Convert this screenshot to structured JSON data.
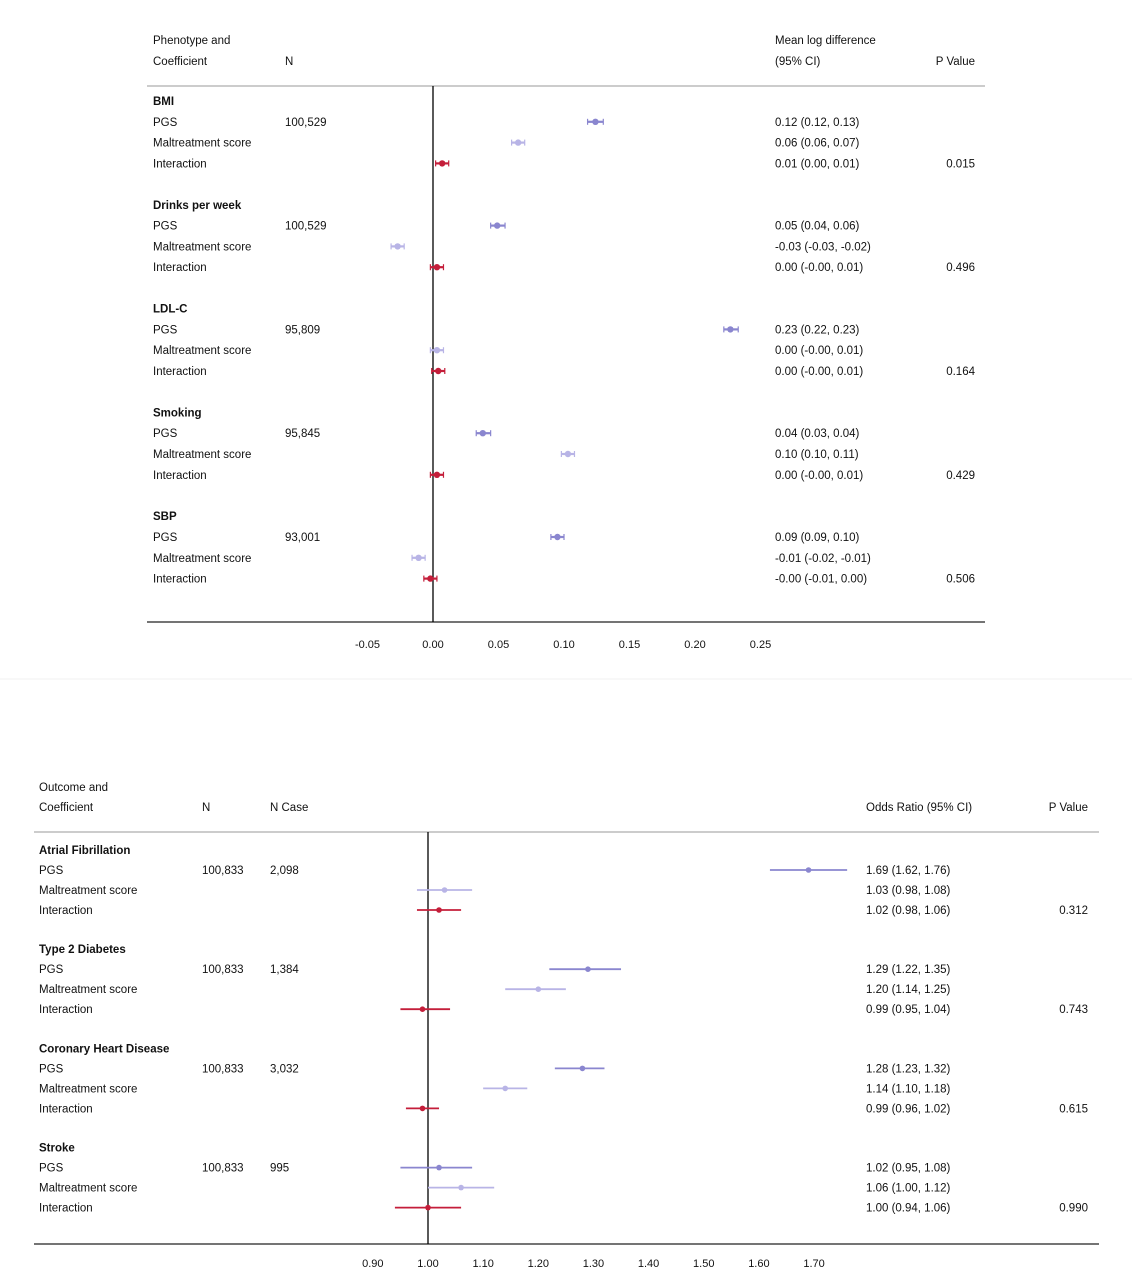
{
  "chart_data": [
    {
      "type": "forest",
      "header": {
        "label_line1": "Phenotype and",
        "label_line2": "Coefficient",
        "n": "N",
        "est_line1": "Mean log difference",
        "est_line2": "(95% CI)",
        "p": "P Value"
      },
      "xlim": [
        -0.1,
        0.25
      ],
      "ref_line": 0,
      "xticks": [
        "-0.05",
        "0.00",
        "0.05",
        "0.10",
        "0.15",
        "0.20",
        "0.25"
      ],
      "xtick_values": [
        -0.05,
        0,
        0.05,
        0.1,
        0.15,
        0.2,
        0.25
      ],
      "colors": {
        "PGS": "#8a86cf",
        "Maltreatment score": "#b8b4e6",
        "Interaction": "#c41e3a"
      },
      "groups": [
        {
          "name": "BMI",
          "rows": [
            {
              "label": "PGS",
              "n": "100,529",
              "est": 0.124,
              "lo": 0.118,
              "hi": 0.13,
              "text": "0.12 (0.12, 0.13)",
              "p": ""
            },
            {
              "label": "Maltreatment score",
              "n": "",
              "est": 0.065,
              "lo": 0.06,
              "hi": 0.07,
              "text": "0.06 (0.06, 0.07)",
              "p": ""
            },
            {
              "label": "Interaction",
              "n": "",
              "est": 0.007,
              "lo": 0.002,
              "hi": 0.012,
              "text": "0.01 (0.00, 0.01)",
              "p": "0.015"
            }
          ]
        },
        {
          "name": "Drinks per week",
          "rows": [
            {
              "label": "PGS",
              "n": "100,529",
              "est": 0.049,
              "lo": 0.044,
              "hi": 0.055,
              "text": "0.05 (0.04, 0.06)",
              "p": ""
            },
            {
              "label": "Maltreatment score",
              "n": "",
              "est": -0.027,
              "lo": -0.032,
              "hi": -0.022,
              "text": "-0.03 (-0.03, -0.02)",
              "p": ""
            },
            {
              "label": "Interaction",
              "n": "",
              "est": 0.003,
              "lo": -0.002,
              "hi": 0.008,
              "text": "0.00 (-0.00, 0.01)",
              "p": "0.496"
            }
          ]
        },
        {
          "name": "LDL-C",
          "rows": [
            {
              "label": "PGS",
              "n": "95,809",
              "est": 0.227,
              "lo": 0.222,
              "hi": 0.233,
              "text": "0.23 (0.22, 0.23)",
              "p": ""
            },
            {
              "label": "Maltreatment score",
              "n": "",
              "est": 0.003,
              "lo": -0.002,
              "hi": 0.008,
              "text": "0.00 (-0.00, 0.01)",
              "p": ""
            },
            {
              "label": "Interaction",
              "n": "",
              "est": 0.004,
              "lo": -0.001,
              "hi": 0.009,
              "text": "0.00 (-0.00, 0.01)",
              "p": "0.164"
            }
          ]
        },
        {
          "name": "Smoking",
          "rows": [
            {
              "label": "PGS",
              "n": "95,845",
              "est": 0.038,
              "lo": 0.033,
              "hi": 0.044,
              "text": "0.04 (0.03, 0.04)",
              "p": ""
            },
            {
              "label": "Maltreatment score",
              "n": "",
              "est": 0.103,
              "lo": 0.098,
              "hi": 0.108,
              "text": "0.10 (0.10, 0.11)",
              "p": ""
            },
            {
              "label": "Interaction",
              "n": "",
              "est": 0.003,
              "lo": -0.002,
              "hi": 0.008,
              "text": "0.00 (-0.00, 0.01)",
              "p": "0.429"
            }
          ]
        },
        {
          "name": "SBP",
          "rows": [
            {
              "label": "PGS",
              "n": "93,001",
              "est": 0.095,
              "lo": 0.09,
              "hi": 0.1,
              "text": "0.09 (0.09, 0.10)",
              "p": ""
            },
            {
              "label": "Maltreatment score",
              "n": "",
              "est": -0.011,
              "lo": -0.016,
              "hi": -0.006,
              "text": "-0.01 (-0.02, -0.01)",
              "p": ""
            },
            {
              "label": "Interaction",
              "n": "",
              "est": -0.002,
              "lo": -0.007,
              "hi": 0.003,
              "text": "-0.00 (-0.01, 0.00)",
              "p": "0.506"
            }
          ]
        }
      ]
    },
    {
      "type": "forest",
      "header": {
        "label_line1": "Outcome and",
        "label_line2": "Coefficient",
        "n": "N",
        "ncase": "N Case",
        "est_line2": "Odds Ratio (95% CI)",
        "p": "P Value"
      },
      "xlim": [
        0.8,
        1.95
      ],
      "ref_line": 1.0,
      "xticks": [
        "0.90",
        "1.00",
        "1.10",
        "1.20",
        "1.30",
        "1.40",
        "1.50",
        "1.60",
        "1.70"
      ],
      "xtick_values": [
        0.9,
        1.0,
        1.1,
        1.2,
        1.3,
        1.4,
        1.5,
        1.6,
        1.7
      ],
      "colors": {
        "PGS": "#8a86cf",
        "Maltreatment score": "#b8b4e6",
        "Interaction": "#c41e3a"
      },
      "groups": [
        {
          "name": "Atrial Fibrillation",
          "rows": [
            {
              "label": "PGS",
              "n": "100,833",
              "ncase": "2,098",
              "est": 1.69,
              "lo": 1.62,
              "hi": 1.76,
              "text": "1.69 (1.62, 1.76)",
              "p": ""
            },
            {
              "label": "Maltreatment score",
              "n": "",
              "ncase": "",
              "est": 1.03,
              "lo": 0.98,
              "hi": 1.08,
              "text": "1.03 (0.98, 1.08)",
              "p": ""
            },
            {
              "label": "Interaction",
              "n": "",
              "ncase": "",
              "est": 1.02,
              "lo": 0.98,
              "hi": 1.06,
              "text": "1.02 (0.98, 1.06)",
              "p": "0.312"
            }
          ]
        },
        {
          "name": "Type 2 Diabetes",
          "rows": [
            {
              "label": "PGS",
              "n": "100,833",
              "ncase": "1,384",
              "est": 1.29,
              "lo": 1.22,
              "hi": 1.35,
              "text": "1.29 (1.22, 1.35)",
              "p": ""
            },
            {
              "label": "Maltreatment score",
              "n": "",
              "ncase": "",
              "est": 1.2,
              "lo": 1.14,
              "hi": 1.25,
              "text": "1.20 (1.14, 1.25)",
              "p": ""
            },
            {
              "label": "Interaction",
              "n": "",
              "ncase": "",
              "est": 0.99,
              "lo": 0.95,
              "hi": 1.04,
              "text": "0.99 (0.95, 1.04)",
              "p": "0.743"
            }
          ]
        },
        {
          "name": "Coronary Heart Disease",
          "rows": [
            {
              "label": "PGS",
              "n": "100,833",
              "ncase": "3,032",
              "est": 1.28,
              "lo": 1.23,
              "hi": 1.32,
              "text": "1.28 (1.23, 1.32)",
              "p": ""
            },
            {
              "label": "Maltreatment score",
              "n": "",
              "ncase": "",
              "est": 1.14,
              "lo": 1.1,
              "hi": 1.18,
              "text": "1.14 (1.10, 1.18)",
              "p": ""
            },
            {
              "label": "Interaction",
              "n": "",
              "ncase": "",
              "est": 0.99,
              "lo": 0.96,
              "hi": 1.02,
              "text": "0.99 (0.96, 1.02)",
              "p": "0.615"
            }
          ]
        },
        {
          "name": "Stroke",
          "rows": [
            {
              "label": "PGS",
              "n": "100,833",
              "ncase": "995",
              "est": 1.02,
              "lo": 0.95,
              "hi": 1.08,
              "text": "1.02 (0.95, 1.08)",
              "p": ""
            },
            {
              "label": "Maltreatment score",
              "n": "",
              "ncase": "",
              "est": 1.06,
              "lo": 1.0,
              "hi": 1.12,
              "text": "1.06 (1.00, 1.12)",
              "p": ""
            },
            {
              "label": "Interaction",
              "n": "",
              "ncase": "",
              "est": 1.0,
              "lo": 0.94,
              "hi": 1.06,
              "text": "1.00 (0.94, 1.06)",
              "p": "0.990"
            }
          ]
        }
      ]
    }
  ]
}
